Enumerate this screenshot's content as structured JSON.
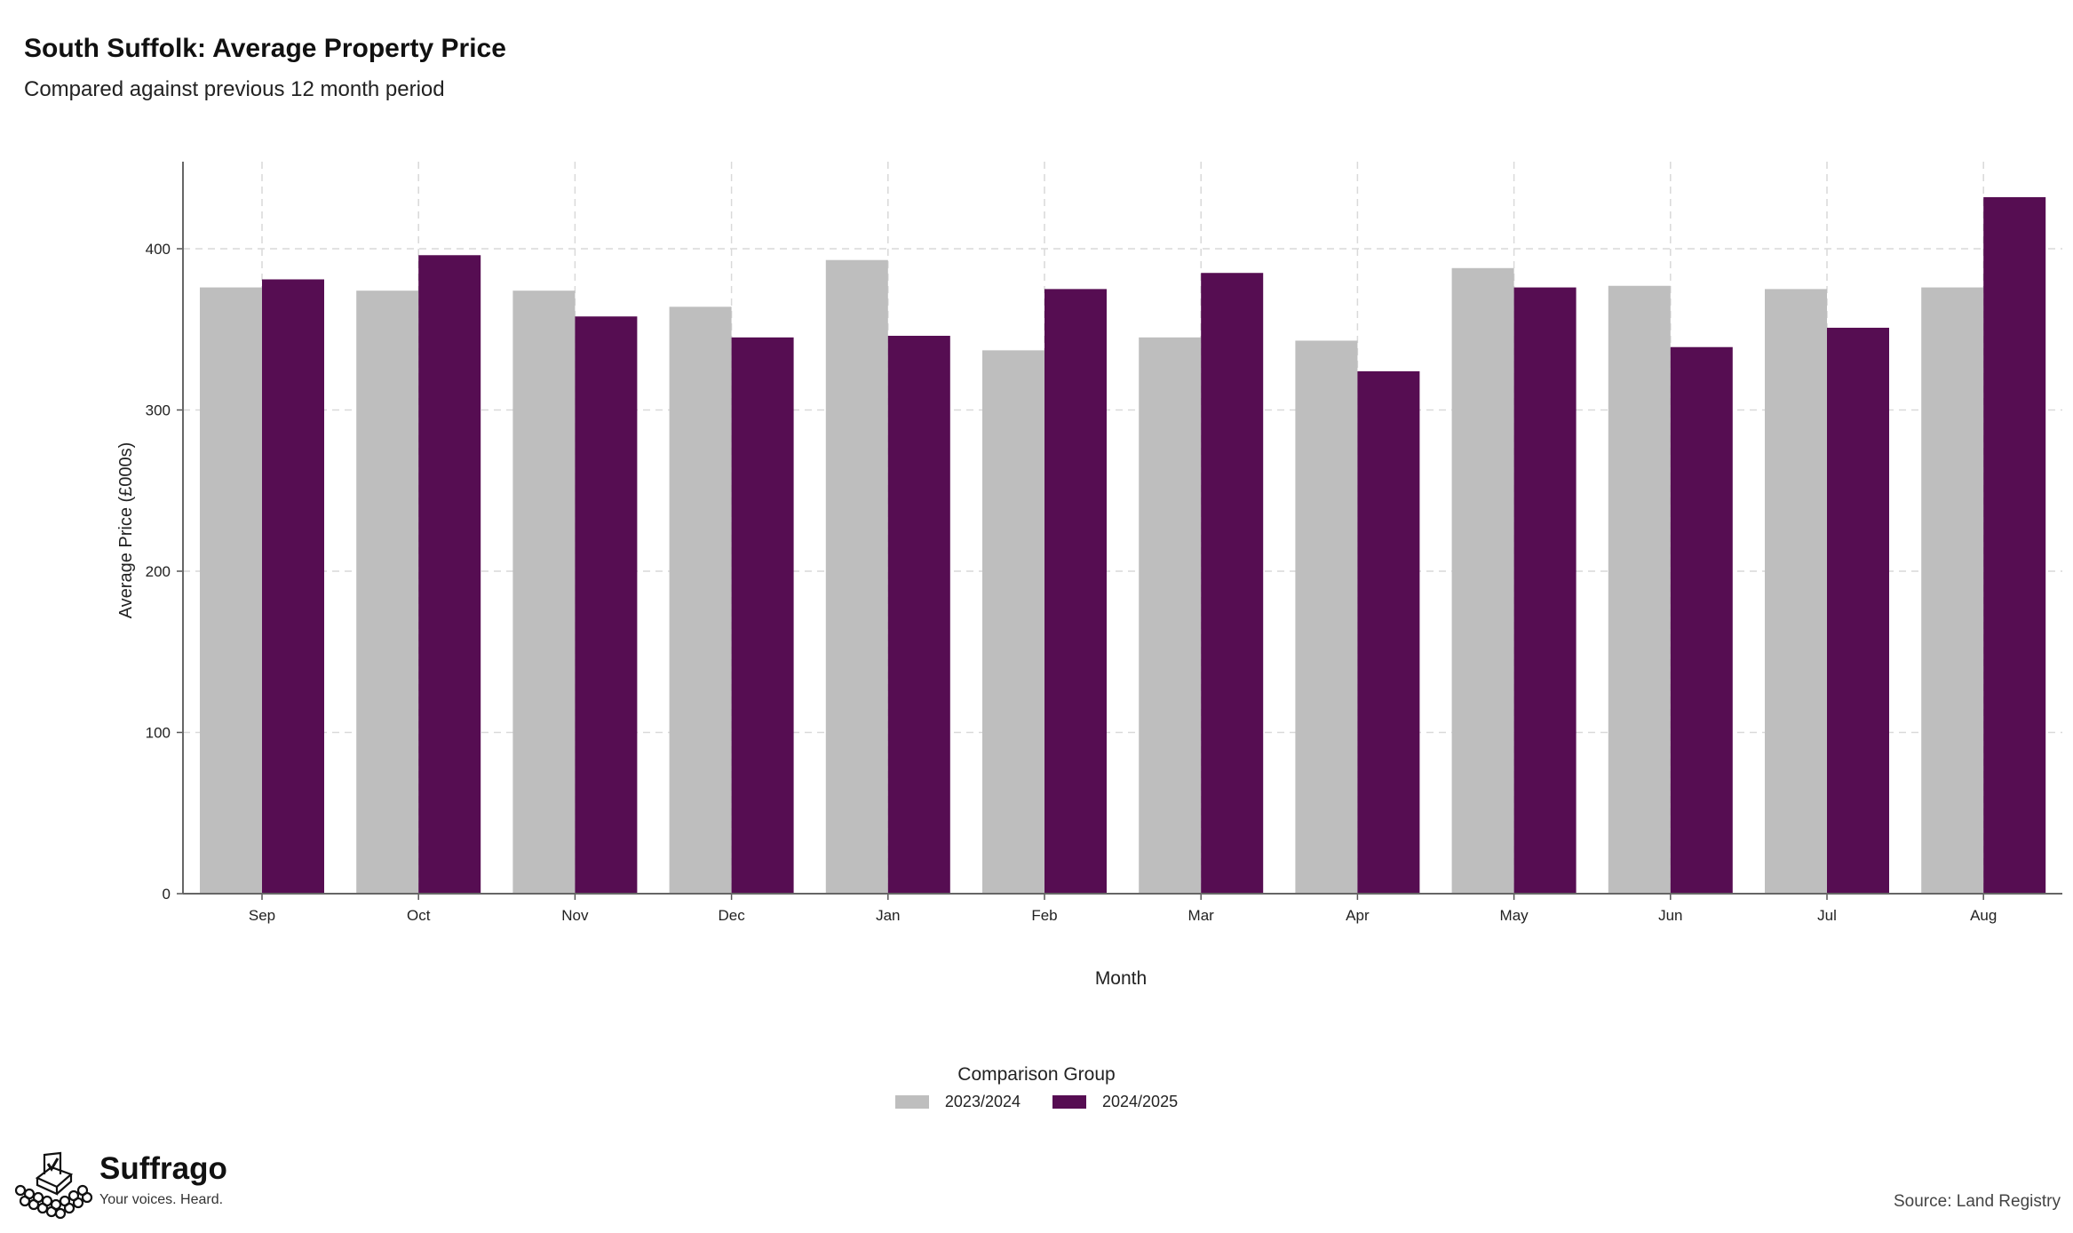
{
  "header": {
    "title": "South Suffolk: Average Property Price",
    "subtitle": "Compared against previous 12 month period"
  },
  "chart_data": {
    "type": "bar",
    "categories": [
      "Sep",
      "Oct",
      "Nov",
      "Dec",
      "Jan",
      "Feb",
      "Mar",
      "Apr",
      "May",
      "Jun",
      "Jul",
      "Aug"
    ],
    "series": [
      {
        "name": "2023/2024",
        "color": "#bebebe",
        "values": [
          376,
          374,
          374,
          364,
          393,
          337,
          345,
          343,
          388,
          377,
          375,
          376
        ]
      },
      {
        "name": "2024/2025",
        "color": "#560d52",
        "values": [
          381,
          396,
          358,
          345,
          346,
          375,
          385,
          324,
          376,
          339,
          351,
          432
        ]
      }
    ],
    "xlabel": "Month",
    "ylabel": "Average Price (£000s)",
    "yticks": [
      0,
      100,
      200,
      300,
      400
    ],
    "ylim": [
      0,
      454
    ],
    "grid": true,
    "legend_title": "Comparison Group",
    "legend_position": "bottom"
  },
  "branding": {
    "name": "Suffrago",
    "tagline": "Your voices. Heard.",
    "logo_icon": "ballot-box-icon"
  },
  "footer": {
    "source": "Source: Land Registry"
  }
}
